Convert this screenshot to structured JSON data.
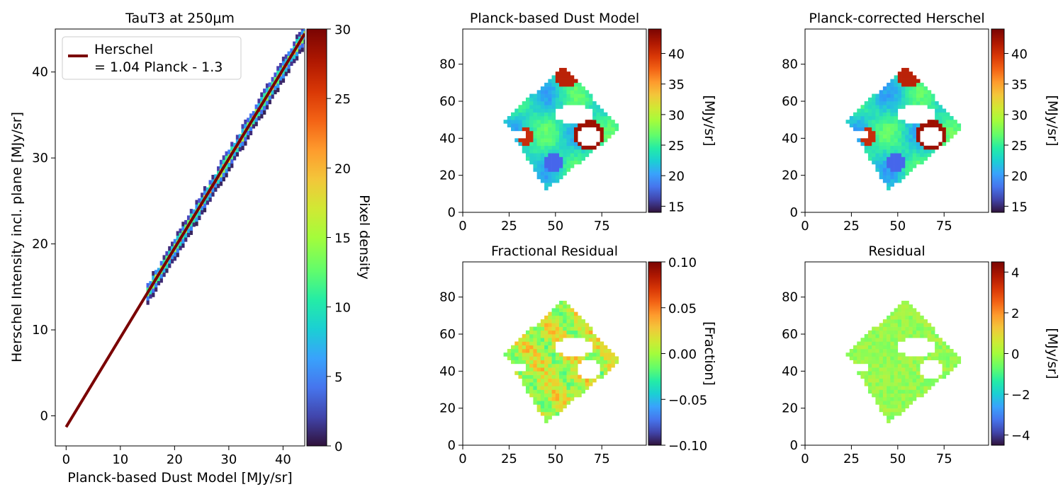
{
  "chart_data": [
    {
      "type": "heatmap",
      "panel": "scatter",
      "title": "TauT3 at 250μm",
      "xlabel": "Planck-based Dust Model [MJy/sr]",
      "ylabel": "Herschel Intensity incl. plane [MJy/sr]",
      "xlim": [
        -2,
        44
      ],
      "ylim": [
        -3.5,
        45
      ],
      "xticks": [
        "0",
        "10",
        "20",
        "30",
        "40"
      ],
      "yticks": [
        "0",
        "10",
        "20",
        "30",
        "40"
      ],
      "colorbar": {
        "label": "Pixel density",
        "range": [
          0,
          30
        ],
        "ticks": [
          "0",
          "5",
          "10",
          "15",
          "20",
          "25",
          "30"
        ]
      },
      "legend": {
        "position": "top-left",
        "entries": [
          "Herschel\n= 1.04 Planck - 1.3"
        ]
      },
      "fit_line": {
        "slope": 1.04,
        "intercept": -1.3,
        "x_range": [
          0,
          44
        ],
        "color": "#7a0000"
      },
      "density_band": {
        "x_range": [
          14.8,
          44
        ],
        "slope": 1.04,
        "intercept": -1.3
      }
    },
    {
      "type": "heatmap",
      "panel": "map",
      "title": "Planck-based Dust Model",
      "xlim": [
        0,
        99
      ],
      "ylim": [
        0,
        99
      ],
      "xticks": [
        "0",
        "25",
        "50",
        "75"
      ],
      "yticks": [
        "0",
        "20",
        "40",
        "60",
        "80"
      ],
      "colorbar": {
        "label": "[MJy/sr]",
        "range": [
          14,
          44
        ],
        "ticks": [
          "15",
          "20",
          "25",
          "30",
          "35",
          "40"
        ]
      },
      "diamond": {
        "top": [
          55,
          79
        ],
        "right": [
          85,
          45
        ],
        "bottom": [
          45,
          12
        ],
        "left": [
          22,
          50
        ]
      }
    },
    {
      "type": "heatmap",
      "panel": "map",
      "title": "Planck-corrected Herschel",
      "xlim": [
        0,
        99
      ],
      "ylim": [
        0,
        99
      ],
      "xticks": [
        "0",
        "25",
        "50",
        "75"
      ],
      "yticks": [
        "0",
        "20",
        "40",
        "60",
        "80"
      ],
      "colorbar": {
        "label": "[MJy/sr]",
        "range": [
          14,
          44
        ],
        "ticks": [
          "15",
          "20",
          "25",
          "30",
          "35",
          "40"
        ]
      },
      "diamond": {
        "top": [
          55,
          79
        ],
        "right": [
          85,
          45
        ],
        "bottom": [
          45,
          12
        ],
        "left": [
          22,
          50
        ]
      }
    },
    {
      "type": "heatmap",
      "panel": "map",
      "title": "Fractional Residual",
      "xlim": [
        0,
        99
      ],
      "ylim": [
        0,
        99
      ],
      "xticks": [
        "0",
        "25",
        "50",
        "75"
      ],
      "yticks": [
        "0",
        "20",
        "40",
        "60",
        "80"
      ],
      "colorbar": {
        "label": "[Fraction]",
        "range": [
          -0.1,
          0.1
        ],
        "ticks": [
          "−0.10",
          "−0.05",
          "0.00",
          "0.05",
          "0.10"
        ]
      },
      "diamond": {
        "top": [
          55,
          79
        ],
        "right": [
          85,
          45
        ],
        "bottom": [
          45,
          12
        ],
        "left": [
          22,
          50
        ]
      }
    },
    {
      "type": "heatmap",
      "panel": "map",
      "title": "Residual",
      "xlim": [
        0,
        99
      ],
      "ylim": [
        0,
        99
      ],
      "xticks": [
        "0",
        "25",
        "50",
        "75"
      ],
      "yticks": [
        "0",
        "20",
        "40",
        "60",
        "80"
      ],
      "colorbar": {
        "label": "[MJy/sr]",
        "range": [
          -4.5,
          4.5
        ],
        "ticks": [
          "−4",
          "−2",
          "0",
          "2",
          "4"
        ]
      },
      "diamond": {
        "top": [
          55,
          79
        ],
        "right": [
          85,
          45
        ],
        "bottom": [
          45,
          12
        ],
        "left": [
          22,
          50
        ]
      }
    }
  ],
  "colors": {
    "fit_line": "#7a0000",
    "colormap": "turbo"
  }
}
